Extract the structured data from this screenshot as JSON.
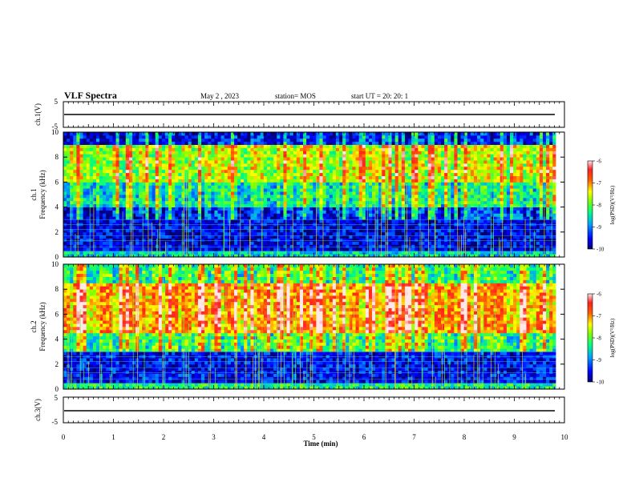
{
  "header": {
    "title": "VLF Spectra",
    "date": "May 2 , 2023",
    "station": "station= MOS",
    "start": "start UT = 20: 20: 1"
  },
  "chart_data": [
    {
      "type": "line",
      "ylabel": "ch.1(V)",
      "yticks": [
        "5",
        "-5"
      ],
      "ylim": [
        -5,
        5
      ],
      "xlim": [
        0,
        10
      ],
      "value": 0
    },
    {
      "type": "heatmap",
      "ylabel": "ch.1 Frequency (kHz)",
      "yticks": [
        "0",
        "2",
        "4",
        "6",
        "8",
        "10"
      ],
      "ylim": [
        0,
        10
      ],
      "xlim": [
        0,
        9.83
      ],
      "colorbar": {
        "label": "log(PSD)(V²/Hz)",
        "ticks": [
          "-6",
          "-7",
          "-8",
          "-9",
          "-10"
        ],
        "range": [
          -10,
          -6
        ]
      },
      "bands": [
        {
          "f_low": 0,
          "f_high": 0.5,
          "level": -8.6
        },
        {
          "f_low": 0.5,
          "f_high": 3,
          "level": -9.6
        },
        {
          "f_low": 3,
          "f_high": 4,
          "level": -9.2
        },
        {
          "f_low": 4,
          "f_high": 6,
          "level": -8.2
        },
        {
          "f_low": 6,
          "f_high": 9,
          "level": -7.4
        },
        {
          "f_low": 9,
          "f_high": 10,
          "level": -9.3
        }
      ]
    },
    {
      "type": "heatmap",
      "ylabel": "ch.2 Frequency (kHz)",
      "yticks": [
        "0",
        "2",
        "4",
        "6",
        "8",
        "10"
      ],
      "ylim": [
        0,
        10
      ],
      "xlim": [
        0,
        9.83
      ],
      "colorbar": {
        "label": "log(PSD)(V²/Hz)",
        "ticks": [
          "-6",
          "-7",
          "-8",
          "-9",
          "-10"
        ],
        "range": [
          -10,
          -6
        ]
      },
      "bands": [
        {
          "f_low": 0,
          "f_high": 0.5,
          "level": -8.3
        },
        {
          "f_low": 0.5,
          "f_high": 3,
          "level": -9.5
        },
        {
          "f_low": 3,
          "f_high": 4.5,
          "level": -8.0
        },
        {
          "f_low": 4.5,
          "f_high": 8.5,
          "level": -6.9
        },
        {
          "f_low": 8.5,
          "f_high": 10,
          "level": -8.0
        }
      ]
    },
    {
      "type": "line",
      "ylabel": "ch.3(V)",
      "yticks": [
        "5",
        "-5"
      ],
      "ylim": [
        -5,
        5
      ],
      "xlim": [
        0,
        10
      ],
      "value": 0
    }
  ],
  "xaxis": {
    "label": "Time (min)",
    "ticks": [
      "0",
      "1",
      "2",
      "3",
      "4",
      "5",
      "6",
      "7",
      "8",
      "9",
      "10"
    ]
  }
}
